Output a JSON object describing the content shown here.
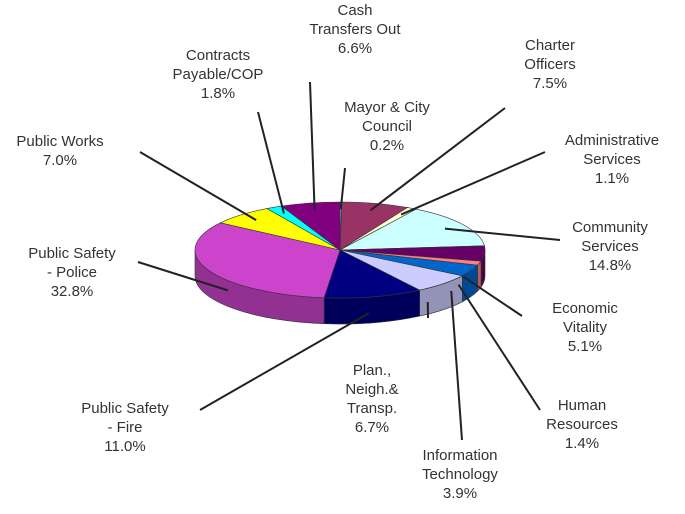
{
  "chart_data": {
    "type": "pie3d",
    "categories": [
      "Mayor & City\nCouncil",
      "Charter\nOfficers",
      "Administrative\nServices",
      "Community\nServices",
      "Economic\nVitality",
      "Human\nResources",
      "Information\nTechnology",
      "Plan.,\nNeigh.&\nTransp.",
      "Public Safety\n- Fire",
      "Public Safety\n- Police",
      "Public Works",
      "Contracts\nPayable/COP",
      "Cash\nTransfers Out"
    ],
    "values": [
      0.2,
      7.5,
      1.1,
      14.8,
      5.1,
      1.4,
      3.9,
      6.7,
      11.0,
      32.8,
      7.0,
      1.8,
      6.6
    ],
    "value_labels": [
      "0.2%",
      "7.5%",
      "1.1%",
      "14.8%",
      "5.1%",
      "1.4%",
      "3.9%",
      "6.7%",
      "11.0%",
      "32.8%",
      "7.0%",
      "1.8%",
      "6.6%"
    ],
    "colors": [
      "#9999ff",
      "#993366",
      "#ffffcc",
      "#ccffff",
      "#660066",
      "#ff8080",
      "#0066cc",
      "#ccccff",
      "#000080",
      "#cc44cc",
      "#ffff00",
      "#00ffff",
      "#800080"
    ]
  }
}
